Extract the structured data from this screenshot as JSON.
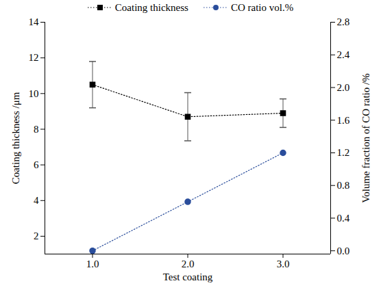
{
  "chart_data": {
    "type": "line",
    "x_label": "Test coating",
    "y_label": "Coating thickness /μm",
    "y2_label": "Volume fraction of CO ratio /%",
    "x": [
      1,
      2,
      3
    ],
    "xlim": [
      0.5,
      3.5
    ],
    "xticks": [
      1,
      2,
      3
    ],
    "ylim": [
      1,
      14
    ],
    "yticks": [
      2,
      4,
      6,
      8,
      10,
      12,
      14
    ],
    "y2lim": [
      -0.04,
      2.8
    ],
    "y2ticks": [
      {
        "value": 0,
        "label": "0.0"
      },
      {
        "value": 0.4,
        "label": "0.4"
      },
      {
        "value": 0.8,
        "label": "0.8"
      },
      {
        "value": 1.2,
        "label": "1.2"
      },
      {
        "value": 1.6,
        "label": "1.6"
      },
      {
        "value": 2,
        "label": "2.0"
      },
      {
        "value": 2.4,
        "label": "2.4"
      },
      {
        "value": 2.8,
        "label": "2.8"
      }
    ],
    "legend": "top",
    "series": [
      {
        "name": "Coating thickness",
        "color": "#000000",
        "marker": "square",
        "line_style": "dotted",
        "values": [
          10.5,
          8.7,
          8.9
        ],
        "errors": [
          1.3,
          1.35,
          0.8
        ]
      },
      {
        "name": "CO ratio vol.%",
        "color": "#2a4d9b",
        "marker": "circle",
        "line_style": "dotted",
        "axis": "y2",
        "values": [
          0,
          0.6,
          1.2
        ]
      }
    ]
  }
}
